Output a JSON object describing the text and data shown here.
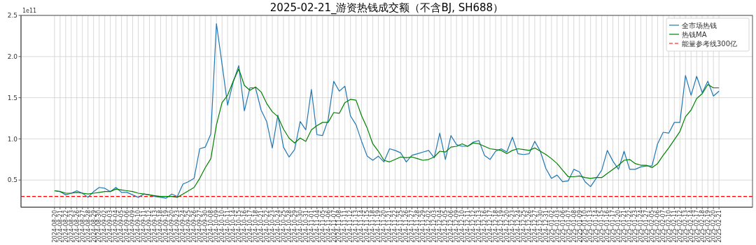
{
  "chart_data": {
    "type": "line",
    "title": "2025-02-21_游资热钱成交额（不含BJ, SH688）",
    "categories": [
      "2024-08-20",
      "2024-08-21",
      "2024-08-22",
      "2024-08-23",
      "2024-08-26",
      "2024-08-27",
      "2024-08-28",
      "2024-08-29",
      "2024-08-30",
      "2024-09-02",
      "2024-09-03",
      "2024-09-04",
      "2024-09-05",
      "2024-09-06",
      "2024-09-09",
      "2024-09-10",
      "2024-09-11",
      "2024-09-12",
      "2024-09-13",
      "2024-09-18",
      "2024-09-19",
      "2024-09-20",
      "2024-09-23",
      "2024-09-24",
      "2024-09-25",
      "2024-09-26",
      "2024-09-27",
      "2024-09-30",
      "2024-10-08",
      "2024-10-09",
      "2024-10-10",
      "2024-10-11",
      "2024-10-14",
      "2024-10-15",
      "2024-10-16",
      "2024-10-17",
      "2024-10-18",
      "2024-10-21",
      "2024-10-22",
      "2024-10-23",
      "2024-10-24",
      "2024-10-25",
      "2024-10-28",
      "2024-10-29",
      "2024-10-30",
      "2024-10-31",
      "2024-11-01",
      "2024-11-04",
      "2024-11-05",
      "2024-11-06",
      "2024-11-07",
      "2024-11-08",
      "2024-11-11",
      "2024-11-12",
      "2024-11-13",
      "2024-11-14",
      "2024-11-15",
      "2024-11-18",
      "2024-11-19",
      "2024-11-20",
      "2024-11-21",
      "2024-11-22",
      "2024-11-25",
      "2024-11-26",
      "2024-11-27",
      "2024-11-28",
      "2024-11-29",
      "2024-12-02",
      "2024-12-03",
      "2024-12-04",
      "2024-12-05",
      "2024-12-06",
      "2024-12-09",
      "2024-12-10",
      "2024-12-11",
      "2024-12-12",
      "2024-12-13",
      "2024-12-16",
      "2024-12-17",
      "2024-12-18",
      "2024-12-19",
      "2024-12-20",
      "2024-12-23",
      "2024-12-24",
      "2024-12-25",
      "2024-12-26",
      "2024-12-27",
      "2024-12-30",
      "2024-12-31",
      "2025-01-02",
      "2025-01-03",
      "2025-01-06",
      "2025-01-07",
      "2025-01-08",
      "2025-01-09",
      "2025-01-10",
      "2025-01-13",
      "2025-01-14",
      "2025-01-15",
      "2025-01-16",
      "2025-01-17",
      "2025-01-20",
      "2025-01-21",
      "2025-01-22",
      "2025-01-23",
      "2025-01-24",
      "2025-01-27",
      "2025-02-05",
      "2025-02-06",
      "2025-02-07",
      "2025-02-10",
      "2025-02-11",
      "2025-02-12",
      "2025-02-13",
      "2025-02-14",
      "2025-02-17",
      "2025-02-18",
      "2025-02-19",
      "2025-02-20",
      "2025-02-21"
    ],
    "series": [
      {
        "name": "全市场热钱",
        "color": "#1f77b4",
        "values": [
          0.37,
          0.36,
          0.32,
          0.34,
          0.37,
          0.34,
          0.29,
          0.36,
          0.41,
          0.4,
          0.36,
          0.41,
          0.35,
          0.35,
          0.32,
          0.29,
          0.33,
          0.32,
          0.3,
          0.29,
          0.28,
          0.33,
          0.3,
          0.45,
          0.48,
          0.52,
          0.88,
          0.9,
          1.06,
          2.4,
          1.91,
          1.41,
          1.69,
          1.89,
          1.34,
          1.62,
          1.62,
          1.35,
          1.21,
          0.89,
          1.29,
          0.9,
          0.78,
          0.87,
          1.21,
          1.11,
          1.6,
          1.05,
          1.04,
          1.23,
          1.7,
          1.58,
          1.64,
          1.28,
          1.17,
          0.97,
          0.79,
          0.74,
          0.79,
          0.72,
          0.88,
          0.86,
          0.83,
          0.72,
          0.8,
          0.82,
          0.84,
          0.86,
          0.77,
          1.07,
          0.75,
          1.04,
          0.93,
          0.91,
          0.91,
          0.96,
          0.98,
          0.8,
          0.75,
          0.85,
          0.88,
          0.84,
          1.02,
          0.82,
          0.81,
          0.82,
          0.97,
          0.85,
          0.64,
          0.52,
          0.56,
          0.48,
          0.49,
          0.63,
          0.6,
          0.48,
          0.42,
          0.52,
          0.62,
          0.86,
          0.73,
          0.63,
          0.85,
          0.63,
          0.63,
          0.66,
          0.67,
          0.67,
          0.94,
          1.08,
          1.07,
          1.2,
          1.2,
          1.77,
          1.53,
          1.76,
          1.56,
          1.7,
          1.52,
          1.58
        ]
      },
      {
        "name": "热钱MA",
        "color": "#008000",
        "values": [
          0.37,
          0.36,
          0.34,
          0.34,
          0.35,
          0.34,
          0.33,
          0.34,
          0.35,
          0.36,
          0.36,
          0.39,
          0.38,
          0.37,
          0.36,
          0.34,
          0.33,
          0.32,
          0.31,
          0.3,
          0.3,
          0.3,
          0.29,
          0.33,
          0.37,
          0.41,
          0.52,
          0.65,
          0.76,
          1.17,
          1.44,
          1.53,
          1.7,
          1.85,
          1.65,
          1.59,
          1.63,
          1.57,
          1.43,
          1.33,
          1.27,
          1.12,
          1.01,
          0.95,
          1.01,
          0.97,
          1.11,
          1.16,
          1.2,
          1.2,
          1.32,
          1.31,
          1.44,
          1.48,
          1.47,
          1.28,
          1.13,
          0.94,
          0.85,
          0.74,
          0.72,
          0.75,
          0.78,
          0.77,
          0.78,
          0.76,
          0.74,
          0.75,
          0.78,
          0.85,
          0.84,
          0.9,
          0.91,
          0.94,
          0.91,
          0.95,
          0.94,
          0.91,
          0.88,
          0.87,
          0.86,
          0.82,
          0.86,
          0.88,
          0.87,
          0.86,
          0.89,
          0.85,
          0.81,
          0.76,
          0.7,
          0.62,
          0.54,
          0.54,
          0.55,
          0.53,
          0.52,
          0.53,
          0.53,
          0.58,
          0.63,
          0.68,
          0.74,
          0.75,
          0.7,
          0.68,
          0.68,
          0.65,
          0.7,
          0.8,
          0.89,
          0.99,
          1.09,
          1.27,
          1.35,
          1.49,
          1.55,
          1.66,
          1.62,
          1.62
        ]
      }
    ],
    "ylim": [
      0.17,
      2.5
    ],
    "yticks": [
      {
        "value": 0.5,
        "label": "0.5"
      },
      {
        "value": 1.0,
        "label": "1.0"
      },
      {
        "value": 1.5,
        "label": "1.5"
      },
      {
        "value": 2.0,
        "label": "2.0"
      },
      {
        "value": 2.5,
        "label": "2.5"
      }
    ],
    "ref_lines": [
      {
        "axis": "y",
        "value": 0.3,
        "label": "能量参考线300亿",
        "color": "#ff0000",
        "line_style": "dashed"
      }
    ],
    "annotations": [
      "1e11"
    ],
    "grid": true,
    "legend": "top right"
  }
}
